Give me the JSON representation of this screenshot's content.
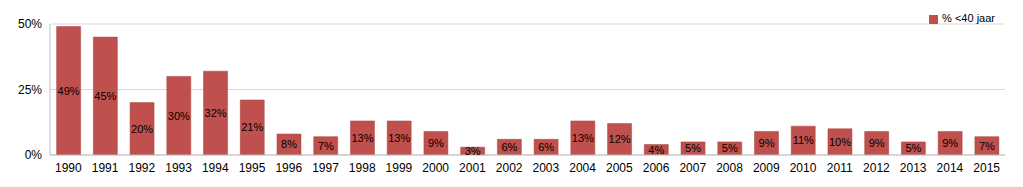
{
  "chart_data": {
    "type": "bar",
    "categories": [
      "1990",
      "1991",
      "1992",
      "1993",
      "1994",
      "1995",
      "1996",
      "1997",
      "1998",
      "1999",
      "2000",
      "2001",
      "2002",
      "2003",
      "2004",
      "2005",
      "2006",
      "2007",
      "2008",
      "2009",
      "2010",
      "2011",
      "2012",
      "2013",
      "2014",
      "2015"
    ],
    "series": [
      {
        "name": "% <40 jaar",
        "color": "#c0504d",
        "values": [
          49,
          45,
          20,
          30,
          32,
          21,
          8,
          7,
          13,
          13,
          9,
          3,
          6,
          6,
          13,
          12,
          4,
          5,
          5,
          9,
          11,
          10,
          9,
          5,
          9,
          7
        ],
        "value_labels": [
          "49%",
          "45%",
          "20%",
          "30%",
          "32%",
          "21%",
          "8%",
          "7%",
          "13%",
          "13%",
          "9%",
          "3%",
          "6%",
          "6%",
          "13%",
          "12%",
          "4%",
          "5%",
          "5%",
          "9%",
          "11%",
          "10%",
          "9%",
          "5%",
          "9%",
          "7%"
        ]
      }
    ],
    "ylim": [
      0,
      50
    ],
    "yticks": [
      {
        "value": 0,
        "label": "0%"
      },
      {
        "value": 25,
        "label": "25%"
      },
      {
        "value": 50,
        "label": "50%"
      }
    ],
    "grid": true,
    "legend": "top-right",
    "data_labels": true
  }
}
